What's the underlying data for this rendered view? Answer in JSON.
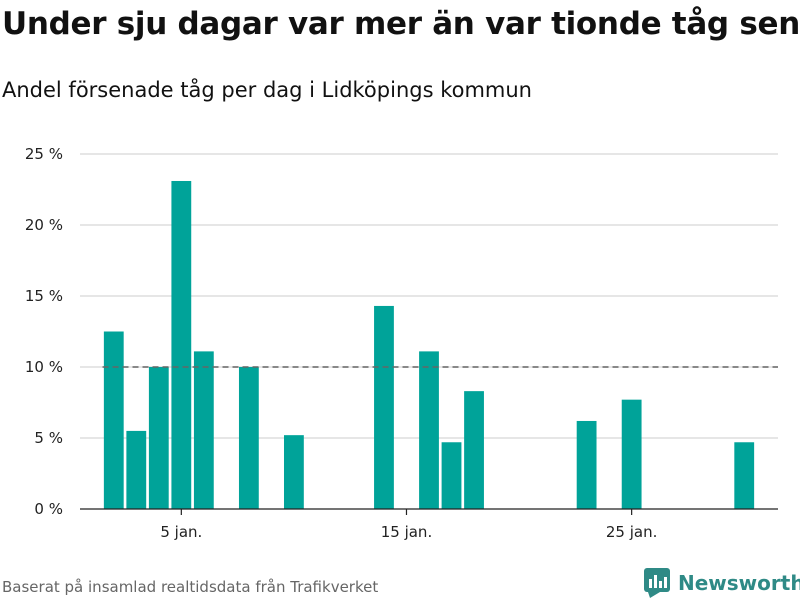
{
  "title": "Under sju dagar var mer än var tionde tåg sent",
  "subtitle": "Andel försenade tåg per dag i Lidköpings kommun",
  "footer": "Baserat på insamlad realtidsdata från Trafikverket",
  "brand": {
    "name": "Newsworthy",
    "icon": "newsworthy-chart-icon",
    "color": "#2f8a86"
  },
  "colors": {
    "bar": "#00a399",
    "grid": "#dddddd",
    "threshold": "#666666",
    "axis": "#222222"
  },
  "chart_data": {
    "type": "bar",
    "x_unit": "day of January",
    "x": [
      2,
      3,
      4,
      5,
      6,
      8,
      10,
      14,
      16,
      17,
      18,
      23,
      25,
      30
    ],
    "values": [
      12.5,
      5.5,
      10,
      23.1,
      11.1,
      10,
      5.2,
      14.3,
      11.1,
      4.7,
      8.3,
      6.2,
      7.7,
      4.7
    ],
    "y_unit": "%",
    "ylim": [
      0,
      25
    ],
    "y_ticks": [
      0,
      5,
      10,
      15,
      20,
      25
    ],
    "y_tick_labels": [
      "0 %",
      "5 %",
      "10 %",
      "15 %",
      "20 %",
      "25 %"
    ],
    "x_ticks": [
      5,
      15,
      25
    ],
    "x_tick_labels": [
      "5 jan.",
      "15 jan.",
      "25 jan."
    ],
    "xlim": [
      0.5,
      31.5
    ],
    "reference_line": {
      "value": 10,
      "from": 2,
      "to": 31,
      "style": "dashed"
    },
    "grid": true,
    "xlabel": "",
    "ylabel": ""
  }
}
